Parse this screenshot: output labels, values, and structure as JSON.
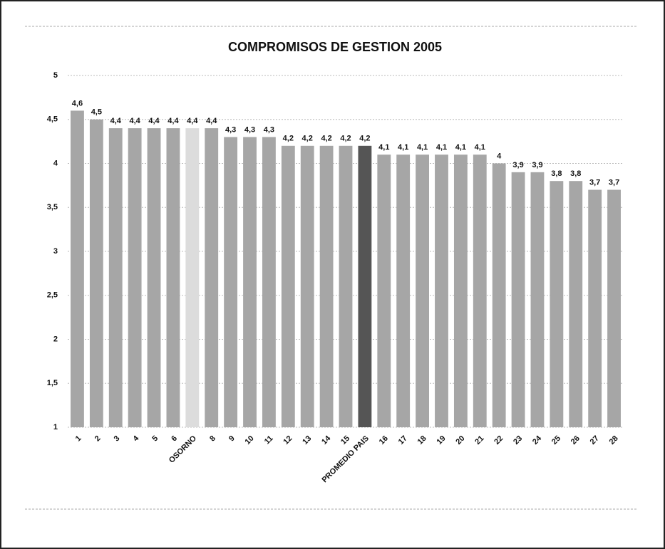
{
  "chart_data": {
    "type": "bar",
    "title": "COMPROMISOS DE GESTION 2005",
    "categories": [
      "1",
      "2",
      "3",
      "4",
      "5",
      "6",
      "OSORNO",
      "8",
      "9",
      "10",
      "11",
      "12",
      "13",
      "14",
      "15",
      "PROMEDIO PAIS",
      "16",
      "17",
      "18",
      "19",
      "20",
      "21",
      "22",
      "23",
      "24",
      "25",
      "26",
      "27",
      "28"
    ],
    "values": [
      4.6,
      4.5,
      4.4,
      4.4,
      4.4,
      4.4,
      4.4,
      4.4,
      4.3,
      4.3,
      4.3,
      4.2,
      4.2,
      4.2,
      4.2,
      4.2,
      4.1,
      4.1,
      4.1,
      4.1,
      4.1,
      4.1,
      4,
      3.9,
      3.9,
      3.8,
      3.8,
      3.7,
      3.7
    ],
    "value_labels": [
      "4,6",
      "4,5",
      "4,4",
      "4,4",
      "4,4",
      "4,4",
      "4,4",
      "4,4",
      "4,3",
      "4,3",
      "4,3",
      "4,2",
      "4,2",
      "4,2",
      "4,2",
      "4,2",
      "4,1",
      "4,1",
      "4,1",
      "4,1",
      "4,1",
      "4,1",
      "4",
      "3,9",
      "3,9",
      "3,8",
      "3,8",
      "3,7",
      "3,7"
    ],
    "colors": [
      "#a6a6a6",
      "#a6a6a6",
      "#a6a6a6",
      "#a6a6a6",
      "#a6a6a6",
      "#a6a6a6",
      "#dcdcdc",
      "#a6a6a6",
      "#a6a6a6",
      "#a6a6a6",
      "#a6a6a6",
      "#a6a6a6",
      "#a6a6a6",
      "#a6a6a6",
      "#a6a6a6",
      "#555555",
      "#a6a6a6",
      "#a6a6a6",
      "#a6a6a6",
      "#a6a6a6",
      "#a6a6a6",
      "#a6a6a6",
      "#a6a6a6",
      "#a6a6a6",
      "#a6a6a6",
      "#a6a6a6",
      "#a6a6a6",
      "#a6a6a6",
      "#a6a6a6"
    ],
    "ylim": [
      1,
      5
    ],
    "yticks": [
      1,
      {
        "value": 1.5,
        "label": "1,5"
      },
      2,
      {
        "value": 2.5,
        "label": "2,5"
      },
      3,
      {
        "value": 3.5,
        "label": "3,5"
      },
      4,
      {
        "value": 4.5,
        "label": "4,5"
      },
      5
    ],
    "grid": true
  }
}
